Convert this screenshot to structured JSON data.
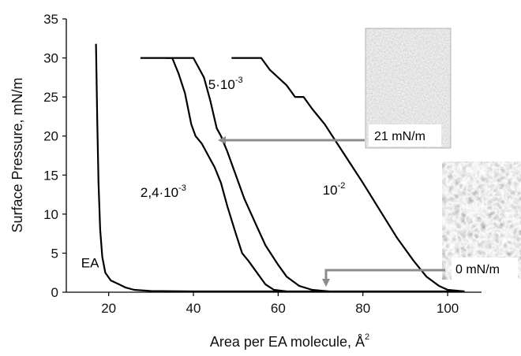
{
  "chart_data": {
    "type": "line",
    "xlabel": "Area per EA molecule, Å",
    "xlabel_superscript": "2",
    "ylabel": "Surface Pressure, mN/m",
    "xlim": [
      10,
      108
    ],
    "ylim": [
      0,
      35
    ],
    "xticks": [
      "20",
      "40",
      "60",
      "80",
      "100"
    ],
    "yticks": [
      "0",
      "5",
      "10",
      "15",
      "20",
      "25",
      "30",
      "35"
    ],
    "xtick_values": [
      20,
      40,
      60,
      80,
      100
    ],
    "ytick_values": [
      0,
      5,
      10,
      15,
      20,
      25,
      30,
      35
    ],
    "grid": false,
    "line_color": "#000000",
    "series": [
      {
        "label_main": "EA",
        "label_exp": "",
        "label_pos": [
          13.5,
          3.2
        ],
        "points": [
          [
            17.0,
            31.8
          ],
          [
            17.3,
            22
          ],
          [
            17.6,
            14
          ],
          [
            18.0,
            8
          ],
          [
            18.5,
            4.5
          ],
          [
            19.2,
            2.5
          ],
          [
            20.5,
            1.5
          ],
          [
            22.5,
            1.0
          ],
          [
            24.0,
            0.6
          ],
          [
            26.0,
            0.3
          ],
          [
            30.0,
            0.15
          ],
          [
            40.0,
            0.1
          ],
          [
            60.0,
            0.1
          ],
          [
            80.0,
            0.1
          ],
          [
            104.0,
            0.1
          ]
        ]
      },
      {
        "label_main": "2,4·10",
        "label_exp": "-3",
        "label_pos": [
          27.5,
          12.2
        ],
        "points": [
          [
            27.5,
            30.0
          ],
          [
            35.0,
            30.0
          ],
          [
            36.5,
            28.0
          ],
          [
            38.0,
            25.5
          ],
          [
            39.5,
            21.5
          ],
          [
            40.5,
            20.0
          ],
          [
            42.0,
            19.0
          ],
          [
            43.5,
            17.5
          ],
          [
            45.0,
            16.0
          ],
          [
            46.5,
            14.0
          ],
          [
            48.0,
            11.0
          ],
          [
            50.0,
            7.5
          ],
          [
            51.5,
            5.0
          ],
          [
            53.0,
            4.0
          ],
          [
            55.0,
            2.5
          ],
          [
            57.0,
            1.0
          ],
          [
            59.0,
            0.3
          ],
          [
            62.0,
            0.1
          ]
        ]
      },
      {
        "label_main": "5·10",
        "label_exp": "-3",
        "label_pos": [
          43.5,
          26.0
        ],
        "points": [
          [
            33.5,
            30.0
          ],
          [
            40.0,
            30.0
          ],
          [
            42.5,
            27.5
          ],
          [
            44.0,
            24.5
          ],
          [
            45.5,
            21.0
          ],
          [
            46.5,
            20.0
          ],
          [
            48.0,
            18.0
          ],
          [
            50.0,
            15.0
          ],
          [
            52.0,
            12.0
          ],
          [
            54.5,
            9.0
          ],
          [
            57.0,
            6.0
          ],
          [
            60.0,
            3.5
          ],
          [
            62.0,
            2.0
          ],
          [
            65.0,
            0.8
          ],
          [
            68.0,
            0.3
          ],
          [
            72.0,
            0.1
          ]
        ]
      },
      {
        "label_main": "10",
        "label_exp": "-2",
        "label_pos": [
          70.5,
          12.5
        ],
        "points": [
          [
            49.0,
            30.0
          ],
          [
            56.0,
            30.0
          ],
          [
            58.0,
            28.5
          ],
          [
            60.0,
            27.5
          ],
          [
            62.0,
            26.5
          ],
          [
            64.0,
            25.0
          ],
          [
            66.0,
            25.0
          ],
          [
            68.0,
            23.5
          ],
          [
            71.0,
            21.5
          ],
          [
            74.0,
            19.0
          ],
          [
            77.0,
            16.5
          ],
          [
            80.0,
            14.0
          ],
          [
            84.0,
            10.5
          ],
          [
            88.0,
            7.0
          ],
          [
            92.0,
            4.0
          ],
          [
            95.0,
            2.0
          ],
          [
            98.0,
            0.8
          ],
          [
            100.0,
            0.3
          ],
          [
            104.0,
            0.1
          ]
        ]
      }
    ],
    "annotations": [
      {
        "text": "21 mN/m",
        "color": "#8c8c8c"
      },
      {
        "text": "0 mN/m",
        "color": "#8c8c8c"
      }
    ]
  }
}
